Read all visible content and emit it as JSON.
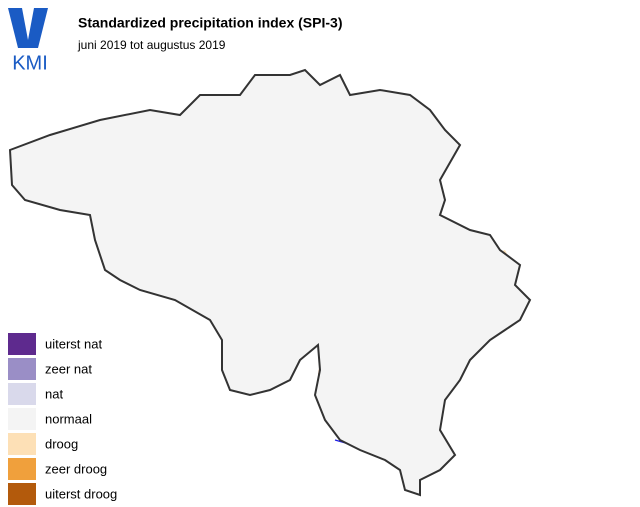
{
  "header": {
    "logo": "KMI",
    "title": "Standardized precipitation index (SPI-3)",
    "subtitle": "juni 2019 tot augustus 2019"
  },
  "legend": [
    {
      "label": "uiterst nat",
      "color": "#5e2a8e"
    },
    {
      "label": "zeer nat",
      "color": "#9a8ec6"
    },
    {
      "label": "nat",
      "color": "#d9d9eb"
    },
    {
      "label": "normaal",
      "color": "#f4f4f4"
    },
    {
      "label": "droog",
      "color": "#fde0b6"
    },
    {
      "label": "zeer droog",
      "color": "#f0a03c"
    },
    {
      "label": "uiterst droog",
      "color": "#b35a0c"
    }
  ]
}
